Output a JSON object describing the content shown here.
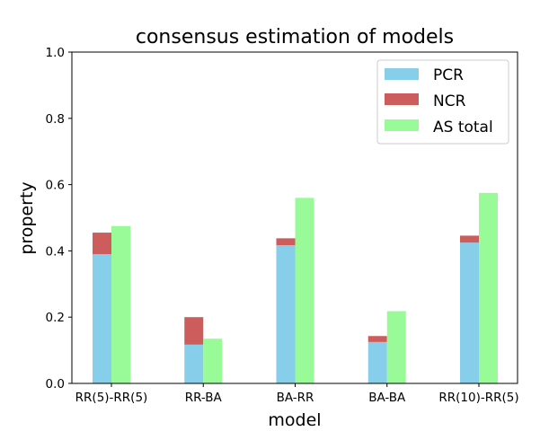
{
  "chart_data": {
    "type": "bar",
    "stacked_series": [
      "PCR",
      "NCR"
    ],
    "title": "consensus estimation of models",
    "xlabel": "model",
    "ylabel": "property",
    "ylim": [
      0,
      1.0
    ],
    "yticks": [
      "0.0",
      "0.2",
      "0.4",
      "0.6",
      "0.8",
      "1.0"
    ],
    "categories": [
      "RR(5)-RR(5)",
      "RR-BA",
      "BA-RR",
      "BA-BA",
      "RR(10)-RR(5)"
    ],
    "series": [
      {
        "name": "PCR",
        "color": "#87ceeb",
        "values": [
          0.39,
          0.117,
          0.417,
          0.125,
          0.425
        ]
      },
      {
        "name": "NCR",
        "color": "#cd5c5c",
        "values": [
          0.065,
          0.083,
          0.021,
          0.018,
          0.021
        ]
      },
      {
        "name": "AS total",
        "color": "#98fb98",
        "values": [
          0.475,
          0.135,
          0.56,
          0.218,
          0.575
        ]
      }
    ],
    "legend_position": "top-right",
    "grid": false
  }
}
